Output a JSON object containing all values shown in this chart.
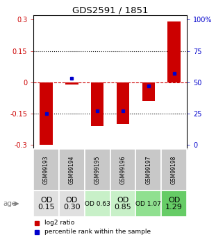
{
  "title": "GDS2591 / 1851",
  "samples": [
    "GSM99193",
    "GSM99194",
    "GSM99195",
    "GSM99196",
    "GSM99197",
    "GSM99198"
  ],
  "log2_ratios": [
    -0.3,
    -0.01,
    -0.21,
    -0.2,
    -0.09,
    0.29
  ],
  "percentile_ranks": [
    25,
    53,
    27,
    27,
    47,
    57
  ],
  "age_labels": [
    "OD\n0.15",
    "OD\n0.30",
    "OD 0.63",
    "OD\n0.85",
    "OD 1.07",
    "OD\n1.29"
  ],
  "age_fontsize": [
    8,
    8,
    6.5,
    8,
    6.5,
    8
  ],
  "cell_colors": [
    "#e0e0e0",
    "#e0e0e0",
    "#c8f0c8",
    "#c8f0c8",
    "#90e090",
    "#66cc66"
  ],
  "bar_color": "#cc0000",
  "dot_color": "#0000cc",
  "ylim": [
    -0.32,
    0.32
  ],
  "yticks_left": [
    -0.3,
    -0.15,
    0,
    0.15,
    0.3
  ],
  "yticks_right": [
    0,
    25,
    50,
    75,
    100
  ],
  "hline_y": [
    -0.15,
    0.15
  ],
  "zero_line_y": 0,
  "background_color": "#ffffff",
  "plot_bg": "#ffffff",
  "header_bg": "#c8c8c8",
  "legend_red_label": "log2 ratio",
  "legend_blue_label": "percentile rank within the sample"
}
